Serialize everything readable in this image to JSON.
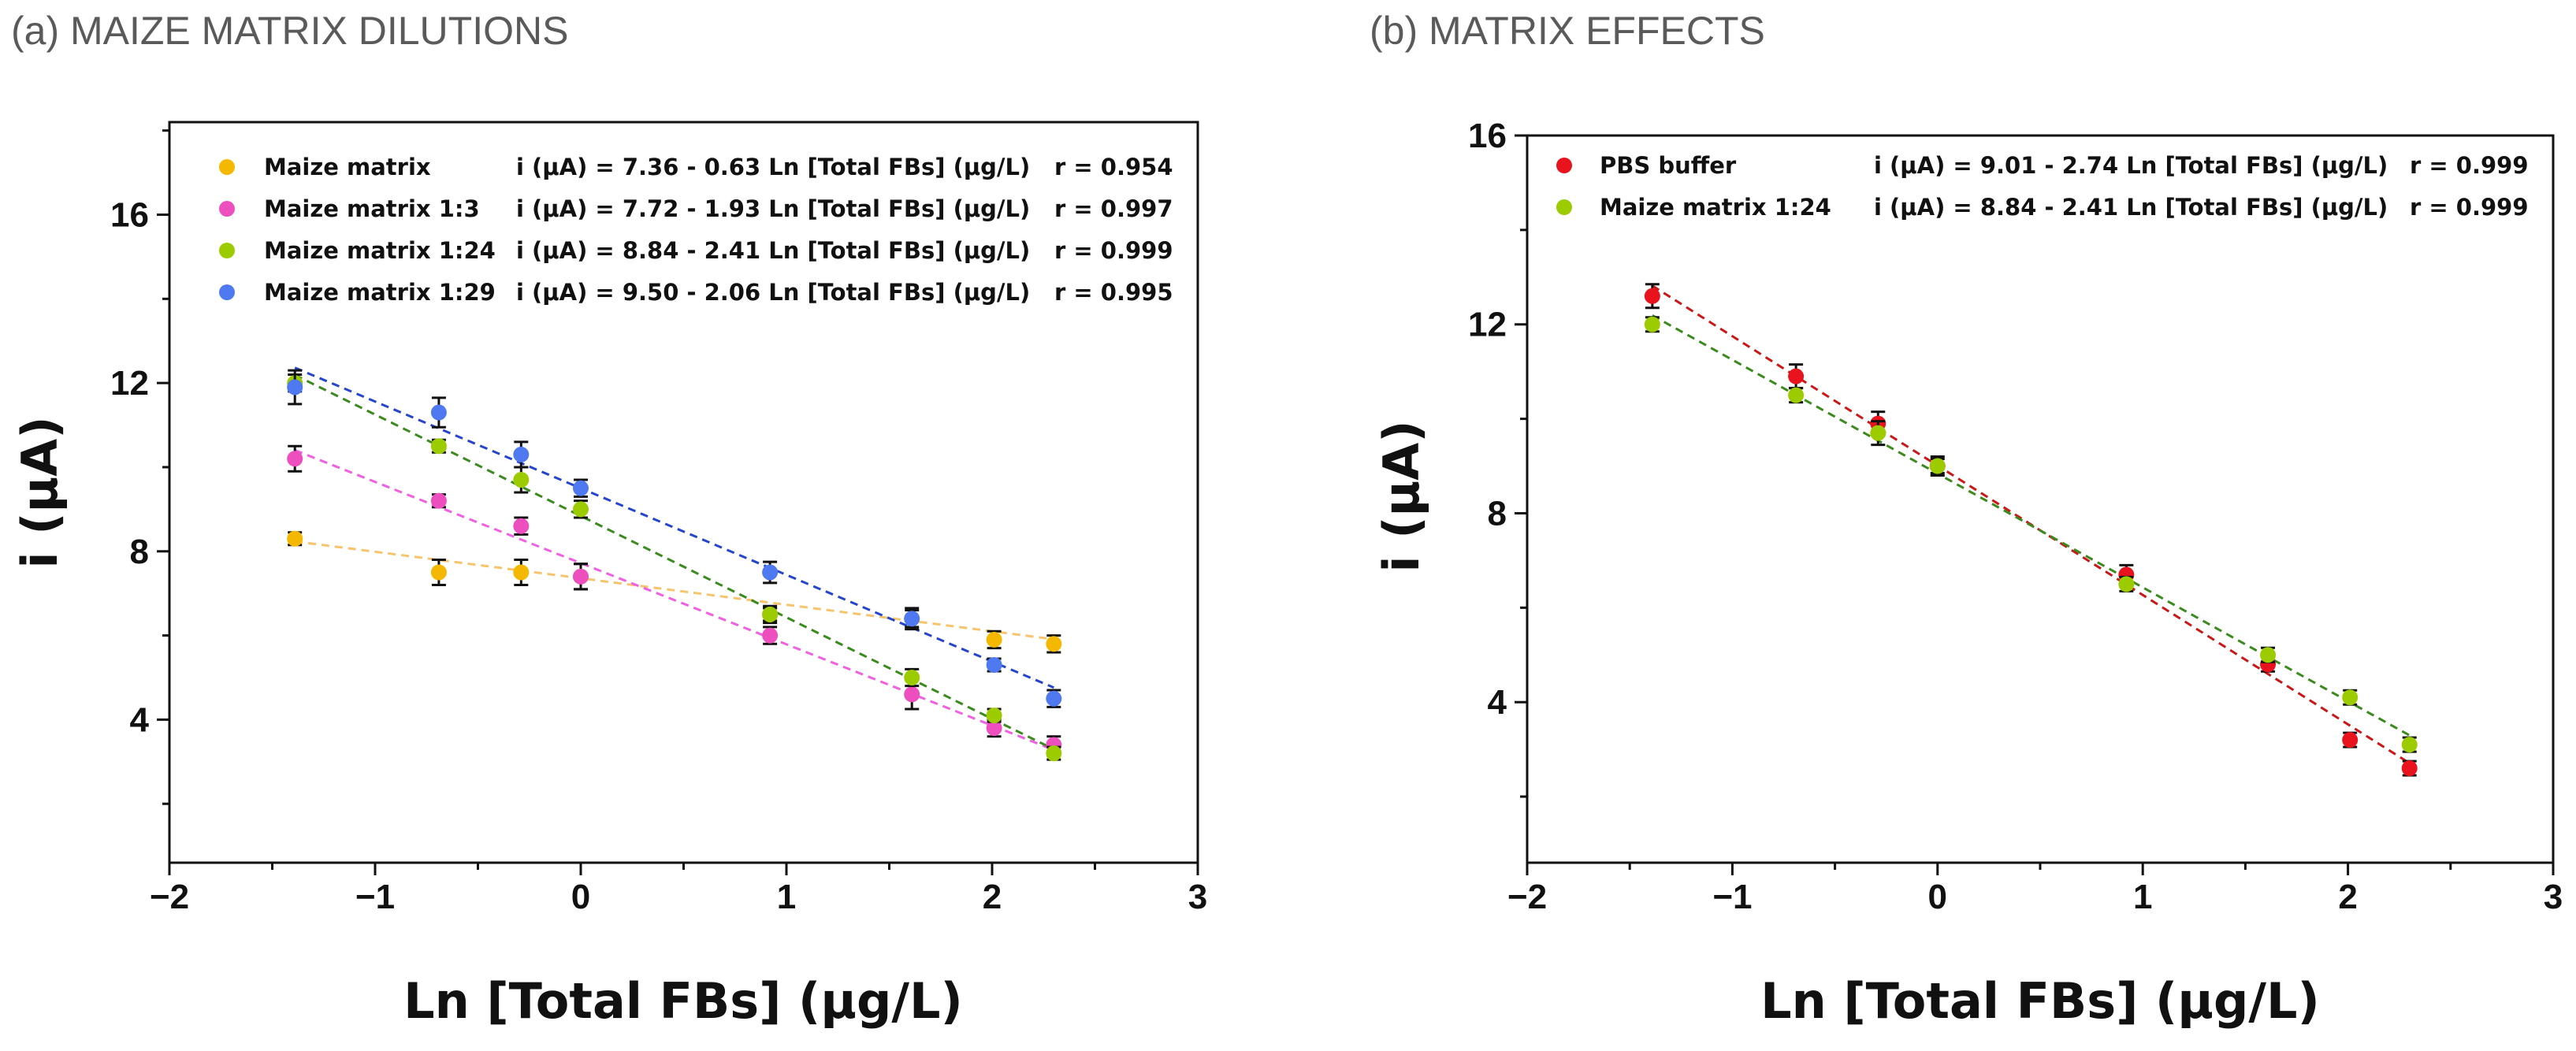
{
  "chart_data": [
    {
      "type": "scatter",
      "title": "(a) MAIZE MATRIX DILUTIONS",
      "xlabel": "Ln [Total FBs]  (μg/L)",
      "ylabel": "i (μA)",
      "xlim": [
        -2,
        3
      ],
      "ylim": [
        0.6,
        18.2
      ],
      "xticks": [
        -2,
        -1,
        0,
        1,
        2,
        3
      ],
      "xtick_labels": [
        "−2",
        "−1",
        "0",
        "1",
        "2",
        "3"
      ],
      "yticks": [
        4,
        8,
        12,
        16
      ],
      "ytick_labels": [
        "4",
        "8",
        "12",
        "16"
      ],
      "legend_position": "top-left",
      "x": [
        -1.39,
        -0.69,
        -0.29,
        0,
        0.92,
        1.61,
        2.01,
        2.3
      ],
      "series": [
        {
          "name": "Maize matrix",
          "color": "#f5b800",
          "fit_color": "#f7c46e",
          "equation": "i (μA) = 7.36 - 0.63 Ln [Total FBs] (μg/L)",
          "r": "r = 0.954",
          "intercept": 7.36,
          "slope": -0.63,
          "values": [
            8.3,
            7.5,
            7.5,
            7.4,
            6.5,
            6.4,
            5.9,
            5.8
          ],
          "errors": [
            0.15,
            0.3,
            0.3,
            0.3,
            0.2,
            0.25,
            0.2,
            0.2
          ]
        },
        {
          "name": "Maize matrix 1:3",
          "color": "#ee4fbf",
          "fit_color": "#f060e0",
          "equation": "i (μA) = 7.72 - 1.93 Ln [Total FBs] (μg/L)",
          "r": "r = 0.997",
          "intercept": 7.72,
          "slope": -1.93,
          "values": [
            10.2,
            9.2,
            8.6,
            7.4,
            6.0,
            4.6,
            3.8,
            3.4
          ],
          "errors": [
            0.3,
            0.15,
            0.2,
            0.3,
            0.2,
            0.35,
            0.2,
            0.2
          ]
        },
        {
          "name": "Maize matrix 1:24",
          "color": "#9ccc00",
          "fit_color": "#3b8a1e",
          "equation": "i (μA) = 8.84 - 2.41 Ln [Total FBs] (μg/L)",
          "r": "r = 0.999",
          "intercept": 8.84,
          "slope": -2.41,
          "values": [
            12.0,
            10.5,
            9.7,
            9.0,
            6.5,
            5.0,
            4.1,
            3.2
          ],
          "errors": [
            0.2,
            0.15,
            0.3,
            0.2,
            0.15,
            0.2,
            0.15,
            0.15
          ]
        },
        {
          "name": "Maize matrix 1:29",
          "color": "#4f79f0",
          "fit_color": "#2545cc",
          "equation": "i (μA) = 9.50 - 2.06 Ln [Total FBs] (μg/L)",
          "r": "r = 0.995",
          "intercept": 9.5,
          "slope": -2.06,
          "values": [
            11.9,
            11.3,
            10.3,
            9.5,
            7.5,
            6.4,
            5.3,
            4.5
          ],
          "errors": [
            0.4,
            0.35,
            0.3,
            0.2,
            0.25,
            0.2,
            0.15,
            0.2
          ]
        }
      ]
    },
    {
      "type": "scatter",
      "title": "(b) MATRIX EFFECTS",
      "xlabel": "Ln [Total FBs]  (μg/L)",
      "ylabel": "i (μA)",
      "xlim": [
        -2,
        3
      ],
      "ylim": [
        0.6,
        16.0
      ],
      "xticks": [
        -2,
        -1,
        0,
        1,
        2,
        3
      ],
      "xtick_labels": [
        "−2",
        "−1",
        "0",
        "1",
        "2",
        "3"
      ],
      "yticks": [
        4,
        8,
        12,
        16
      ],
      "ytick_labels": [
        "4",
        "8",
        "12",
        "16"
      ],
      "legend_position": "top-left",
      "x": [
        -1.39,
        -0.69,
        -0.29,
        0,
        0.92,
        1.61,
        2.01,
        2.3
      ],
      "series": [
        {
          "name": "PBS buffer",
          "color": "#e8131c",
          "fit_color": "#c81818",
          "equation": "i (μA) = 9.01 - 2.74 Ln [Total FBs] (μg/L)",
          "r": "r = 0.999",
          "intercept": 9.01,
          "slope": -2.74,
          "values": [
            12.6,
            10.9,
            9.9,
            9.0,
            6.7,
            4.8,
            3.2,
            2.6
          ],
          "errors": [
            0.25,
            0.25,
            0.25,
            0.2,
            0.2,
            0.15,
            0.15,
            0.15
          ]
        },
        {
          "name": "Maize matrix 1:24",
          "color": "#9ccc00",
          "fit_color": "#3b8a1e",
          "equation": "i (μA) = 8.84 - 2.41 Ln [Total FBs] (μg/L)",
          "r": "r = 0.999",
          "intercept": 8.84,
          "slope": -2.41,
          "values": [
            12.0,
            10.5,
            9.7,
            9.0,
            6.5,
            5.0,
            4.1,
            3.1
          ],
          "errors": [
            0.15,
            0.15,
            0.25,
            0.15,
            0.15,
            0.15,
            0.15,
            0.15
          ]
        }
      ]
    }
  ]
}
